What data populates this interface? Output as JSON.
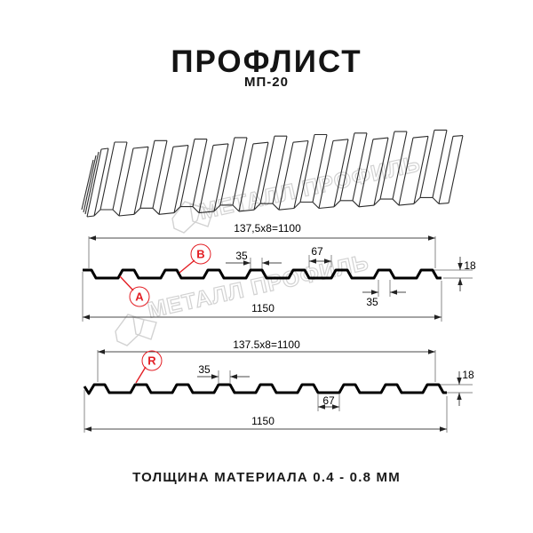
{
  "header": {
    "title": "ПРОФЛИСТ",
    "subtitle": "МП-20"
  },
  "footer": {
    "text": "ТОЛЩИНА МАТЕРИАЛА 0.4 - 0.8 ММ"
  },
  "watermark": {
    "text": "МЕТАЛЛ ПРОФИЛЬ"
  },
  "colors": {
    "accent_red": "#e31e24",
    "line_black": "#000000",
    "watermark_gray": "#d2d2d2"
  },
  "section_top": {
    "dim_module": "137,5x8=1100",
    "dim_rib_top_width": "35",
    "dim_flat_width": "67",
    "dim_height": "18",
    "dim_rib_bottom_width": "35",
    "dim_total_width": "1150",
    "label_a": "A",
    "label_b": "B"
  },
  "section_bottom": {
    "dim_module": "137.5x8=1100",
    "dim_rib_top_width": "35",
    "dim_flat_width": "67",
    "dim_height": "18",
    "dim_total_width": "1150",
    "label_r": "R"
  }
}
